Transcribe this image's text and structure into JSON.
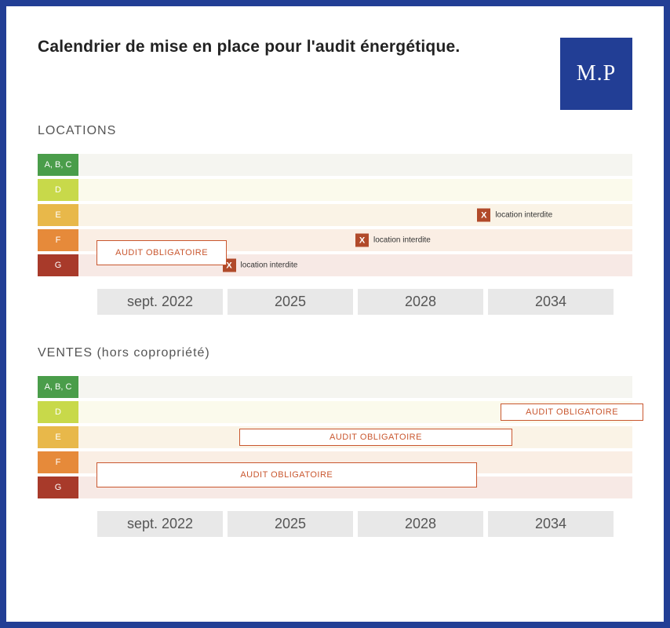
{
  "title": "Calendrier de mise en place pour l'audit énergétique.",
  "logo_text": "M.P",
  "colors": {
    "frame": "#223e95",
    "logo_bg": "#223e95",
    "audit_border": "#c9572f",
    "x_bg": "#b14a2a",
    "time_bg": "#e8e8e8"
  },
  "rows": [
    {
      "label": "A, B, C",
      "label_bg": "#4a9d4a",
      "track_bg": "#f5f5f0"
    },
    {
      "label": "D",
      "label_bg": "#c8d94a",
      "track_bg": "#fbfaec"
    },
    {
      "label": "E",
      "label_bg": "#e8b84a",
      "track_bg": "#faf3e6"
    },
    {
      "label": "F",
      "label_bg": "#e68a3a",
      "track_bg": "#faeee4"
    },
    {
      "label": "G",
      "label_bg": "#a83a2a",
      "track_bg": "#f7e9e5"
    }
  ],
  "timeline": [
    "sept. 2022",
    "2025",
    "2028",
    "2034"
  ],
  "locations": {
    "title": "LOCATIONS",
    "markers": [
      {
        "row": 2,
        "left_pct": 72,
        "text": "location interdite"
      },
      {
        "row": 3,
        "left_pct": 50,
        "text": "location interdite"
      },
      {
        "row": 4,
        "left_pct": 26,
        "text": "location interdite"
      }
    ],
    "audit_boxes": [
      {
        "top_row": 3,
        "left_pct": 3,
        "width_pct": 22,
        "text": "AUDIT OBLIGATOIRE",
        "span_rows": 2
      }
    ]
  },
  "ventes": {
    "title": "VENTES (hors copropriété)",
    "markers": [],
    "audit_boxes": [
      {
        "top_row": 1,
        "left_pct": 71,
        "width_pct": 24,
        "text": "AUDIT OBLIGATOIRE",
        "span_rows": 1,
        "h": 22
      },
      {
        "top_row": 2,
        "left_pct": 27,
        "width_pct": 46,
        "text": "AUDIT OBLIGATOIRE",
        "span_rows": 1,
        "h": 22
      },
      {
        "top_row": 3,
        "left_pct": 3,
        "width_pct": 64,
        "text": "AUDIT OBLIGATOIRE",
        "span_rows": 2
      }
    ]
  }
}
